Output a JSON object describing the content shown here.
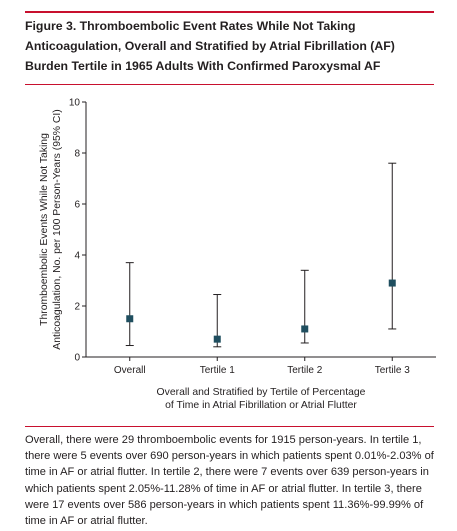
{
  "figure": {
    "title": "Figure 3. Thromboembolic Event Rates While Not Taking Anticoagulation, Overall and Stratified by Atrial Fibrillation (AF) Burden Tertile in 1965 Adults With Confirmed Paroxysmal AF",
    "caption": "Overall, there were 29 thromboembolic events for 1915 person-years. In tertile 1, there were 5 events over 690 person-years in which patients spent 0.01%-2.03% of time in AF or atrial flutter. In tertile 2, there were 7 events over 639 person-years in which patients spent 2.05%-11.28% of time in AF or atrial flutter. In tertile 3, there were 17 events over 586 person-years in which patients spent 11.36%-99.99% of time in AF or atrial flutter."
  },
  "colors": {
    "accent_rule": "#c8102e",
    "marker": "#1f4e5f",
    "text": "#231f20",
    "axis": "#231f20"
  },
  "chart_data": {
    "type": "scatter",
    "categories": [
      "Overall",
      "Tertile 1",
      "Tertile 2",
      "Tertile 3"
    ],
    "values": [
      1.5,
      0.7,
      1.1,
      2.9
    ],
    "ci_lower": [
      0.45,
      0.4,
      0.55,
      1.1
    ],
    "ci_upper": [
      3.7,
      2.45,
      3.4,
      7.6
    ],
    "ylim": [
      0,
      10
    ],
    "yticks": [
      "0",
      "2",
      "4",
      "6",
      "8",
      "10"
    ],
    "xlabel_lines": [
      "Overall and Stratified by Tertile of Percentage",
      "of Time in Atrial Fibrillation or Atrial Flutter"
    ],
    "ylabel_lines": [
      "Thromboembolic Events While Not Taking",
      "Anticoagulation, No. per 100 Person-Years (95% CI)"
    ],
    "error_bars": true,
    "grid": false,
    "legend": "none"
  }
}
